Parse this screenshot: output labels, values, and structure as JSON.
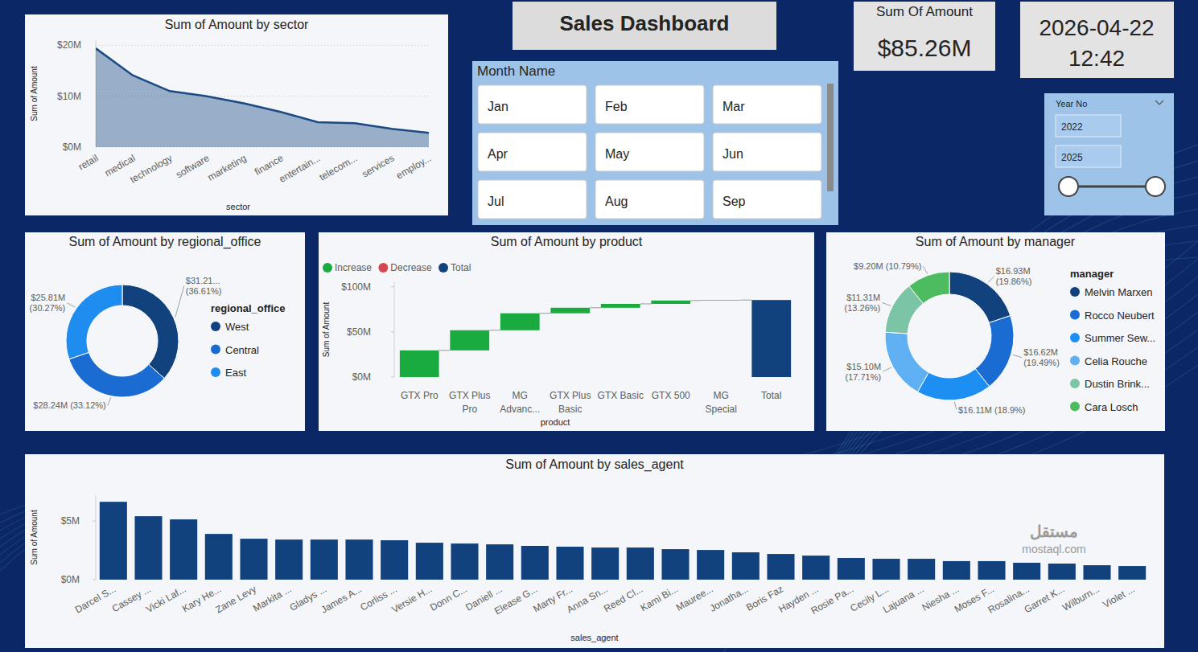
{
  "header": {
    "title": "Sales Dashboard"
  },
  "card": {
    "label": "Sum Of Amount",
    "value": "$85.26M"
  },
  "datetime": {
    "date": "2026-04-22",
    "time": "12:42"
  },
  "month_slicer": {
    "title": "Month Name",
    "items": [
      "Jan",
      "Feb",
      "Mar",
      "Apr",
      "May",
      "Jun",
      "Jul",
      "Aug",
      "Sep"
    ]
  },
  "year_slicer": {
    "title": "Year No",
    "from": "2022",
    "to": "2025"
  },
  "watermark": {
    "arabic": "مستقل",
    "latin": "mostaql.com"
  },
  "chart_data": [
    {
      "type": "area",
      "title": "Sum of Amount by sector",
      "x_label": "sector",
      "y_label": "Sum of Amount",
      "categories": [
        "retail",
        "medical",
        "technology",
        "software",
        "marketing",
        "finance",
        "entertain...",
        "telecom...",
        "services",
        "employ..."
      ],
      "values": [
        19.4,
        14.1,
        11.0,
        10.0,
        8.6,
        6.9,
        4.9,
        4.7,
        3.6,
        2.8
      ],
      "color": "#1b4a85",
      "ylim": [
        0,
        21
      ],
      "yticks": [
        {
          "value": 0,
          "label": "$0M"
        },
        {
          "value": 10,
          "label": "$10M"
        },
        {
          "value": 20,
          "label": "$20M"
        }
      ],
      "grid": true
    },
    {
      "type": "donut",
      "title": "Sum of Amount by regional_office",
      "legend_title": "regional_office",
      "categories": [
        "West",
        "Central",
        "East"
      ],
      "values": [
        31.21,
        28.24,
        25.81
      ],
      "value_labels": [
        "$31.21... (36.61%)",
        "$28.24M (33.12%)",
        "$25.81M (30.27%)"
      ],
      "colors": [
        "#12427e",
        "#1a6cd2",
        "#1f8cf0"
      ],
      "legend": "right",
      "data_labels": true
    },
    {
      "type": "waterfall",
      "title": "Sum of Amount by product",
      "x_label": "product",
      "y_label": "Sum of Amount",
      "categories": [
        "GTX Pro",
        "GTX Plus Pro",
        "MG Advanc...",
        "GTX Plus Basic",
        "GTX Basic",
        "GTX 500",
        "MG Special",
        "Total"
      ],
      "series": [
        {
          "name": "Increase",
          "type": "increase",
          "color": "#1aab40",
          "values": [
            29.5,
            22.3,
            18.8,
            6.1,
            4.3,
            3.7,
            0.56,
            null
          ]
        },
        {
          "name": "Decrease",
          "type": "decrease",
          "color": "#d64554",
          "values": [
            null,
            null,
            null,
            null,
            null,
            null,
            null,
            null
          ]
        },
        {
          "name": "Total",
          "type": "total",
          "color": "#12427e",
          "values": [
            null,
            null,
            null,
            null,
            null,
            null,
            null,
            85.26
          ]
        }
      ],
      "ylim": [
        0,
        105
      ],
      "yticks": [
        {
          "value": 0,
          "label": "$0M"
        },
        {
          "value": 50,
          "label": "$50M"
        },
        {
          "value": 100,
          "label": "$100M"
        }
      ],
      "grid": false,
      "legend": "top-left"
    },
    {
      "type": "donut",
      "title": "Sum of Amount by manager",
      "legend_title": "manager",
      "categories": [
        "Melvin Marxen",
        "Rocco Neubert",
        "Summer Sew...",
        "Celia Rouche",
        "Dustin Brink...",
        "Cara Losch"
      ],
      "values": [
        16.93,
        16.62,
        16.11,
        15.1,
        11.31,
        9.2
      ],
      "value_labels": [
        "$16.93M (19.86%)",
        "$16.62M (19.49%)",
        "$16.11M (18.9%)",
        "$15.10M (17.71%)",
        "$11.31M (13.26%)",
        "$9.20M (10.79%)"
      ],
      "colors": [
        "#12427e",
        "#1a6cd2",
        "#1d8ff2",
        "#5fb0f2",
        "#7cc4a6",
        "#4dbb5f"
      ],
      "legend": "right",
      "data_labels": true
    },
    {
      "type": "bar",
      "title": "Sum of Amount by sales_agent",
      "x_label": "sales_agent",
      "y_label": "Sum of Amount",
      "categories": [
        "Darcel S...",
        "Cassey ...",
        "Vicki Laf...",
        "Kary He...",
        "Zane Levy",
        "Markita ...",
        "Gladys ...",
        "James A...",
        "Corliss ...",
        "Versie H...",
        "Donn C...",
        "Daniell ...",
        "Elease G...",
        "Marty Fr...",
        "Anna Sn...",
        "Reed Cl...",
        "Kami Bi...",
        "Mauree...",
        "Jonatha...",
        "Boris Faz",
        "Hayden ...",
        "Rosie Pa...",
        "Cecily L...",
        "Lajuana ...",
        "Niesha ...",
        "Moses F...",
        "Rosalina...",
        "Garret K...",
        "Wilburn...",
        "Violet ..."
      ],
      "values": [
        6.64,
        5.41,
        5.14,
        3.9,
        3.49,
        3.42,
        3.42,
        3.42,
        3.36,
        3.15,
        3.08,
        3.01,
        2.88,
        2.81,
        2.74,
        2.74,
        2.6,
        2.53,
        2.33,
        2.19,
        2.05,
        1.85,
        1.78,
        1.78,
        1.58,
        1.58,
        1.44,
        1.37,
        1.23,
        1.16
      ],
      "color": "#12427e",
      "ylim": [
        0,
        7.2
      ],
      "yticks": [
        {
          "value": 0,
          "label": "$0M"
        },
        {
          "value": 5,
          "label": "$5M"
        }
      ],
      "grid": false
    }
  ]
}
